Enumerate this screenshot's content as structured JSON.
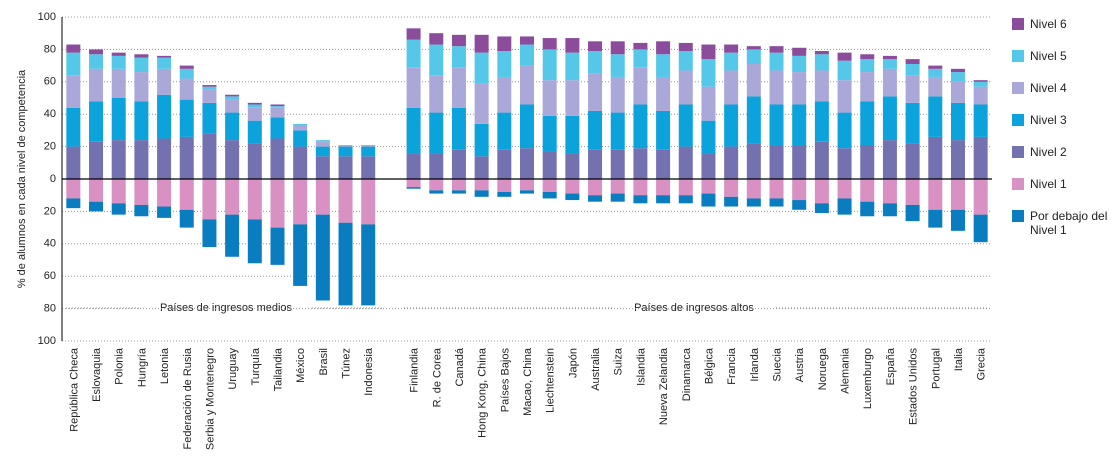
{
  "chart_data": {
    "type": "diverging-stacked-bar",
    "y_label": "% de alumnos en cada nivel de competencia",
    "annotations": [
      "Países de ingresos medios",
      "Países de ingresos altos"
    ],
    "categories": [
      "República Checa",
      "Eslovaquia",
      "Polonia",
      "Hungría",
      "Letonia",
      "Federación de Rusia",
      "Serbia y Montenegro",
      "Uruguay",
      "Turquía",
      "Tailandia",
      "México",
      "Brasil",
      "Túnez",
      "Indonesia",
      null,
      "Finlandia",
      "R. de Corea",
      "Canadá",
      "Hong Kong, China",
      "Países Bajos",
      "Macao, China",
      "Liechtenstein",
      "Japón",
      "Australia",
      "Suiza",
      "Islandia",
      "Nueva Zelandia",
      "Dinamarca",
      "Bélgica",
      "Francia",
      "Irlanda",
      "Suecia",
      "Austria",
      "Noruega",
      "Alemania",
      "Luxemburgo",
      "España",
      "Estados Unidos",
      "Portugal",
      "Italia",
      "Grecia"
    ],
    "series": [
      {
        "name": "Nivel 6",
        "color": "#8b4c9c",
        "values": [
          5,
          3,
          2,
          2,
          1,
          2,
          1,
          1,
          1,
          1,
          0,
          0,
          0,
          0,
          null,
          7,
          7,
          7,
          11,
          9,
          5,
          7,
          9,
          6,
          8,
          4,
          8,
          5,
          9,
          5,
          2,
          4,
          5,
          2,
          5,
          3,
          2,
          3,
          2,
          2,
          1
        ]
      },
      {
        "name": "Nivel 5",
        "color": "#55c8ea",
        "values": [
          14,
          9,
          8,
          9,
          7,
          6,
          2,
          2,
          2,
          1,
          1,
          1,
          0,
          0,
          null,
          17,
          19,
          13,
          19,
          16,
          13,
          19,
          17,
          14,
          14,
          11,
          14,
          12,
          17,
          11,
          9,
          11,
          10,
          10,
          12,
          8,
          6,
          7,
          5,
          6,
          3
        ]
      },
      {
        "name": "Nivel 4",
        "color": "#aaa8d8",
        "values": [
          20,
          20,
          18,
          18,
          16,
          13,
          8,
          8,
          8,
          6,
          3,
          3,
          1,
          1,
          null,
          25,
          23,
          25,
          25,
          22,
          24,
          22,
          22,
          23,
          22,
          23,
          21,
          21,
          21,
          21,
          20,
          21,
          20,
          19,
          20,
          18,
          17,
          17,
          12,
          13,
          11
        ]
      },
      {
        "name": "Nivel 3",
        "color": "#0ca2dc",
        "values": [
          24,
          25,
          26,
          24,
          27,
          23,
          19,
          17,
          14,
          13,
          10,
          6,
          6,
          6,
          null,
          28,
          25,
          26,
          20,
          23,
          27,
          22,
          23,
          24,
          23,
          27,
          24,
          26,
          20,
          26,
          29,
          25,
          25,
          25,
          22,
          27,
          27,
          25,
          25,
          23,
          20
        ]
      },
      {
        "name": "Nivel 2",
        "color": "#7471b1",
        "values": [
          20,
          23,
          24,
          24,
          25,
          26,
          28,
          24,
          22,
          25,
          20,
          14,
          14,
          14,
          null,
          16,
          16,
          18,
          14,
          18,
          19,
          17,
          16,
          18,
          18,
          19,
          18,
          20,
          16,
          20,
          22,
          21,
          21,
          23,
          19,
          21,
          24,
          22,
          26,
          24,
          26
        ]
      },
      {
        "name": "Nivel 1",
        "color": "#d990c2",
        "values": [
          -12,
          -14,
          -15,
          -16,
          -17,
          -19,
          -25,
          -22,
          -25,
          -30,
          -28,
          -22,
          -27,
          -28,
          null,
          -5,
          -7,
          -7,
          -7,
          -8,
          -7,
          -8,
          -9,
          -10,
          -9,
          -10,
          -10,
          -10,
          -9,
          -11,
          -12,
          -12,
          -13,
          -15,
          -12,
          -14,
          -15,
          -16,
          -19,
          -19,
          -22
        ]
      },
      {
        "name": "Por debajo del Nivel 1",
        "color": "#0a7cc0",
        "values": [
          -6,
          -6,
          -7,
          -7,
          -7,
          -11,
          -17,
          -26,
          -27,
          -23,
          -38,
          -53,
          -51,
          -50,
          null,
          -1,
          -2,
          -2,
          -4,
          -3,
          -2,
          -4,
          -4,
          -4,
          -5,
          -5,
          -5,
          -5,
          -8,
          -6,
          -5,
          -5,
          -6,
          -6,
          -10,
          -9,
          -8,
          -10,
          -11,
          -13,
          -17
        ]
      }
    ],
    "ylim": [
      -100,
      100
    ],
    "yticks": [
      {
        "value": -100,
        "label": "100"
      },
      {
        "value": -80,
        "label": "80"
      },
      {
        "value": -60,
        "label": "60"
      },
      {
        "value": -40,
        "label": "40"
      },
      {
        "value": -20,
        "label": "20"
      },
      0,
      20,
      40,
      60,
      80,
      100
    ],
    "grid": true,
    "legend": "right"
  }
}
